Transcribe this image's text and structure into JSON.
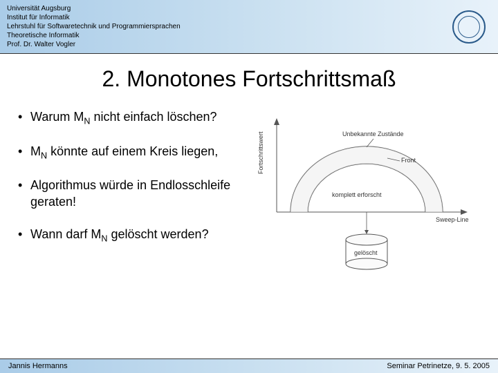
{
  "header": {
    "lines": [
      "Universität Augsburg",
      "Institut für Informatik",
      "Lehrstuhl für Softwaretechnik und Programmiersprachen",
      "Theoretische Informatik",
      "Prof. Dr. Walter Vogler"
    ]
  },
  "title": "2. Monotones Fortschrittsmaß",
  "bullets": [
    {
      "pre": "Warum M",
      "sub": "N",
      "post": " nicht einfach löschen?"
    },
    {
      "pre": "M",
      "sub": "N",
      "post": " könnte auf einem Kreis liegen,"
    },
    {
      "pre": "Algorithmus würde in Endlosschleife geraten!",
      "sub": "",
      "post": ""
    },
    {
      "pre": "Wann darf M",
      "sub": "N",
      "post": " gelöscht werden?"
    }
  ],
  "diagram": {
    "labels": {
      "yaxis": "Fortschrittswert",
      "unknown": "Unbekannte Zustände",
      "front": "Front",
      "explored": "komplett erforscht",
      "sweep": "Sweep-Line",
      "deleted": "gelöscht"
    },
    "colors": {
      "stroke": "#555555",
      "fill_light": "#f5f5f5",
      "bg": "#ffffff"
    }
  },
  "footer": {
    "left": "Jannis Hermanns",
    "right": "Seminar Petrinetze, 9. 5. 2005"
  }
}
